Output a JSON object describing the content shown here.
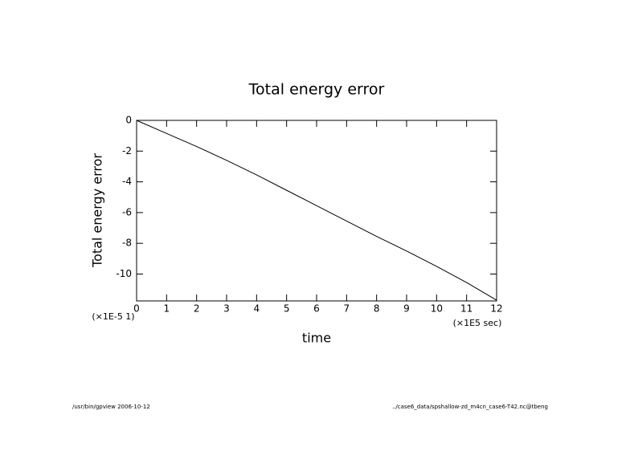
{
  "chart_data": {
    "type": "line",
    "title": "Total energy error",
    "x_label": "time",
    "y_label": "Total energy error",
    "x_unit": "(×1E5 sec)",
    "y_unit": "(×1E-5 1)",
    "footer_left": "/usr/bin/gpview  2006-10-12",
    "footer_right": "../case6_data/spshallow-zd_m4cn_case6-T42.nc@tbeng",
    "x": [
      0,
      1,
      2,
      3,
      4,
      5,
      6,
      7,
      8,
      9,
      10,
      11,
      12
    ],
    "series": [
      {
        "name": "Total energy error",
        "color": "#000000",
        "values": [
          0,
          -0.85,
          -1.7,
          -2.6,
          -3.55,
          -4.55,
          -5.55,
          -6.55,
          -7.55,
          -8.5,
          -9.5,
          -10.55,
          -11.7
        ]
      }
    ],
    "xlim": [
      0,
      12
    ],
    "xticks": [
      0,
      1,
      2,
      3,
      4,
      5,
      6,
      7,
      8,
      9,
      10,
      11,
      12
    ],
    "ylim": [
      -11.75,
      0
    ],
    "yticks": [
      0,
      -2,
      -4,
      -6,
      -8,
      -10
    ],
    "grid": false
  }
}
